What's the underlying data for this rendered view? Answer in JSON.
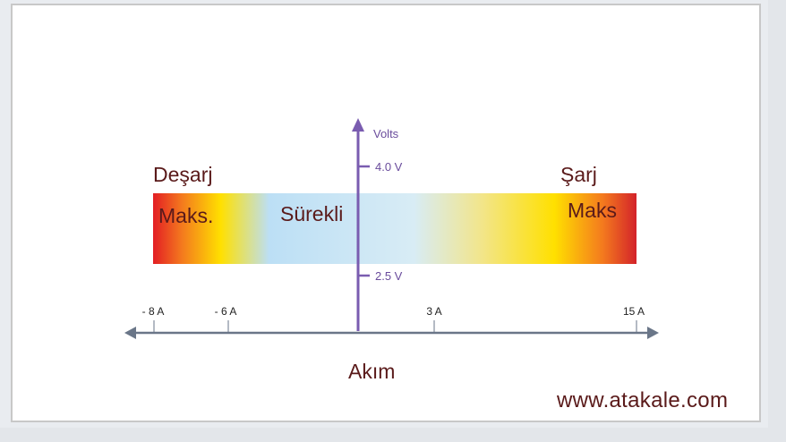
{
  "labels": {
    "discharge": "Deşarj",
    "discharge_max": "Maks.",
    "continuous": "Sürekli",
    "charge": "Şarj",
    "charge_max": "Maks",
    "current_axis": "Akım",
    "voltage_axis": "Volts",
    "watermark": "www.atakale.com"
  },
  "voltage_ticks": [
    "4.0 V",
    "2.5 V"
  ],
  "current_ticks": [
    "- 8 A",
    "- 6 A",
    "3 A",
    "15 A"
  ],
  "colors": {
    "axis": "#7a5cb0",
    "current_axis": "#6a7688",
    "text_dark": "#5a1a1a",
    "gradient": [
      "#e31e24",
      "#ffe000",
      "#bcdff5",
      "#ffe000",
      "#e31e24"
    ]
  }
}
